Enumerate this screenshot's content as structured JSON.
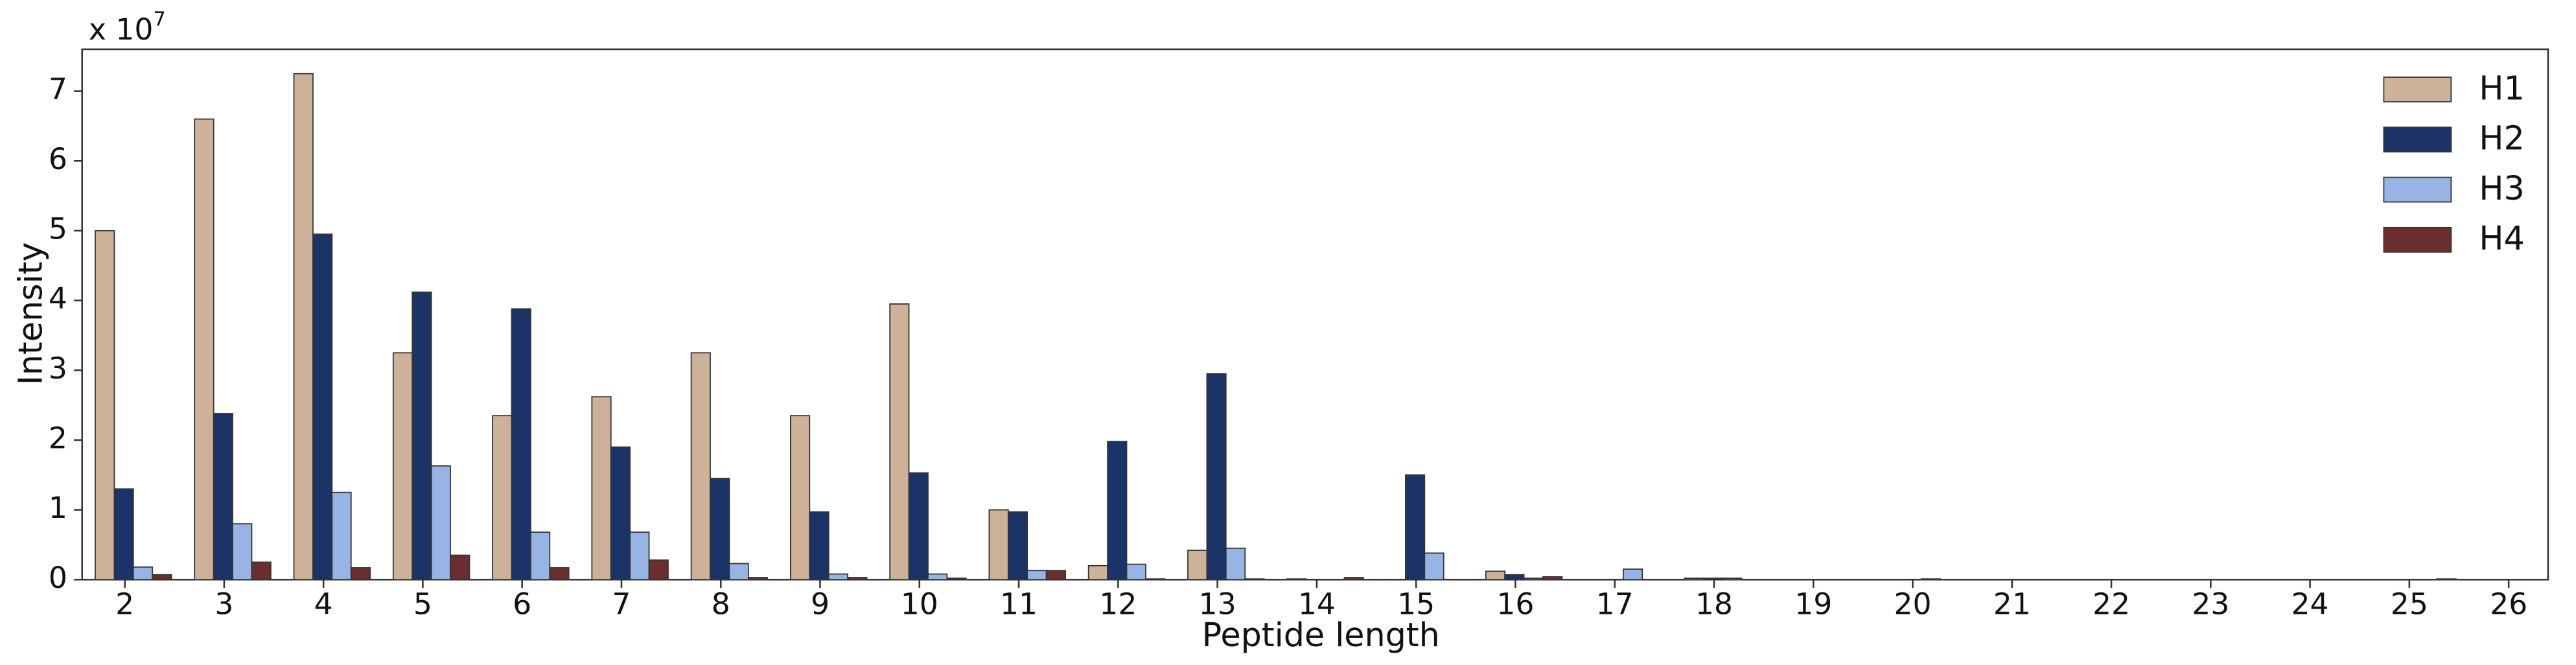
{
  "chart_data": {
    "type": "bar",
    "y_label": "Intensity",
    "x_label": "Peptide length",
    "y_multiplier": {
      "base": "x 10",
      "exponent": "7"
    },
    "categories": [
      "2",
      "3",
      "4",
      "5",
      "6",
      "7",
      "8",
      "9",
      "10",
      "11",
      "12",
      "13",
      "14",
      "15",
      "16",
      "17",
      "18",
      "19",
      "20",
      "21",
      "22",
      "23",
      "24",
      "25",
      "26"
    ],
    "series": [
      {
        "name": "H1",
        "color": "#cdb299",
        "values": [
          5.0,
          6.6,
          7.25,
          3.25,
          2.35,
          2.62,
          3.25,
          2.35,
          3.95,
          1.0,
          0.2,
          0.42,
          0.01,
          0,
          0.12,
          0,
          0.02,
          0,
          0,
          0,
          0,
          0,
          0,
          0,
          0
        ]
      },
      {
        "name": "H2",
        "color": "#1b3366",
        "values": [
          1.3,
          2.38,
          4.95,
          4.12,
          3.88,
          1.9,
          1.45,
          0.97,
          1.53,
          0.97,
          1.98,
          2.95,
          0,
          1.5,
          0.07,
          0,
          0.02,
          0,
          0,
          0,
          0,
          0,
          0,
          0,
          0
        ]
      },
      {
        "name": "H3",
        "color": "#98b4e4",
        "values": [
          0.18,
          0.8,
          1.25,
          1.63,
          0.68,
          0.68,
          0.23,
          0.08,
          0.08,
          0.13,
          0.22,
          0.45,
          0,
          0.38,
          0.02,
          0.15,
          0.02,
          0,
          0.01,
          0,
          0,
          0,
          0,
          0,
          0
        ]
      },
      {
        "name": "H4",
        "color": "#6b2e2e",
        "values": [
          0.07,
          0.25,
          0.17,
          0.35,
          0.17,
          0.28,
          0.03,
          0.03,
          0.02,
          0.13,
          0.01,
          0.01,
          0.03,
          0,
          0.04,
          0,
          0,
          0,
          0,
          0,
          0,
          0,
          0,
          0.01,
          0
        ]
      }
    ],
    "ylim": [
      0,
      7.6
    ],
    "yticks": [
      0,
      1,
      2,
      3,
      4,
      5,
      6,
      7
    ],
    "legend": "upper right",
    "grid": false
  }
}
